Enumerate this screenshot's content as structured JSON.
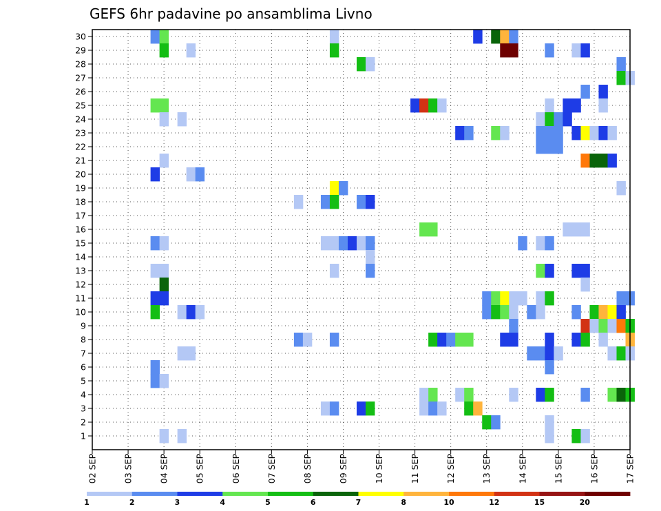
{
  "chart_data": {
    "type": "heatmap",
    "title": "GEFS 6hr padavine po ansamblima Livno",
    "xlabel": "",
    "ylabel": "",
    "x_tick_labels": [
      "02 SEP",
      "03 SEP",
      "04 SEP",
      "05 SEP",
      "06 SEP",
      "07 SEP",
      "08 SEP",
      "09 SEP",
      "10 SEP",
      "11 SEP",
      "12 SEP",
      "13 SEP",
      "14 SEP",
      "15 SEP",
      "16 SEP",
      "17 SEP"
    ],
    "y_tick_labels": [
      "1",
      "2",
      "3",
      "4",
      "5",
      "6",
      "7",
      "8",
      "9",
      "10",
      "11",
      "12",
      "13",
      "14",
      "15",
      "16",
      "17",
      "18",
      "19",
      "20",
      "21",
      "22",
      "23",
      "24",
      "25",
      "26",
      "27",
      "28",
      "29",
      "30"
    ],
    "x_unit": "6-hour step index from 02 SEP 00Z (0-60)",
    "ylim": [
      0,
      30
    ],
    "grid": true,
    "legend_placement": "bottom",
    "color_levels": [
      1,
      2,
      3,
      4,
      5,
      6,
      7,
      8,
      10,
      12,
      15,
      20
    ],
    "legend_labels": [
      "1",
      "2",
      "3",
      "4",
      "5",
      "6",
      "7",
      "8",
      "10",
      "12",
      "15",
      "20"
    ],
    "colors": [
      "#b4c8f5",
      "#5a8cf0",
      "#1e3ce6",
      "#64e650",
      "#14be14",
      "#0a640a",
      "#ffff00",
      "#ffb43c",
      "#ff780a",
      "#d23214",
      "#961414",
      "#6e0000"
    ],
    "cells": [
      [
        7,
        30,
        2
      ],
      [
        8,
        30,
        4
      ],
      [
        27,
        30,
        1
      ],
      [
        43,
        30,
        3
      ],
      [
        45,
        30,
        6
      ],
      [
        46,
        30,
        8
      ],
      [
        47,
        30,
        2
      ],
      [
        8,
        29,
        5
      ],
      [
        11,
        29,
        1
      ],
      [
        27,
        29,
        5
      ],
      [
        46,
        29,
        12
      ],
      [
        47,
        29,
        12
      ],
      [
        51,
        29,
        2
      ],
      [
        54,
        29,
        1
      ],
      [
        55,
        29,
        3
      ],
      [
        30,
        28,
        5
      ],
      [
        31,
        28,
        1
      ],
      [
        59,
        28,
        2
      ],
      [
        59,
        27,
        5
      ],
      [
        60,
        27,
        1
      ],
      [
        55,
        26,
        2
      ],
      [
        57,
        26,
        3
      ],
      [
        7,
        25,
        4
      ],
      [
        8,
        25,
        4
      ],
      [
        36,
        25,
        3
      ],
      [
        37,
        25,
        10
      ],
      [
        38,
        25,
        5
      ],
      [
        39,
        25,
        1
      ],
      [
        51,
        25,
        1
      ],
      [
        53,
        25,
        3
      ],
      [
        54,
        25,
        3
      ],
      [
        57,
        25,
        1
      ],
      [
        8,
        24,
        1
      ],
      [
        10,
        24,
        1
      ],
      [
        50,
        24,
        1
      ],
      [
        51,
        24,
        5
      ],
      [
        52,
        24,
        2
      ],
      [
        53,
        24,
        3
      ],
      [
        41,
        23,
        3
      ],
      [
        42,
        23,
        2
      ],
      [
        45,
        23,
        4
      ],
      [
        46,
        23,
        1
      ],
      [
        50,
        23,
        2
      ],
      [
        51,
        23,
        2
      ],
      [
        52,
        23,
        2
      ],
      [
        54,
        23,
        3
      ],
      [
        55,
        23,
        7
      ],
      [
        56,
        23,
        1
      ],
      [
        57,
        23,
        3
      ],
      [
        58,
        23,
        1
      ],
      [
        50,
        22,
        2
      ],
      [
        51,
        22,
        2
      ],
      [
        52,
        22,
        2
      ],
      [
        8,
        21,
        1
      ],
      [
        55,
        21,
        9
      ],
      [
        56,
        21,
        6
      ],
      [
        57,
        21,
        6
      ],
      [
        58,
        21,
        3
      ],
      [
        7,
        20,
        3
      ],
      [
        11,
        20,
        1
      ],
      [
        12,
        20,
        2
      ],
      [
        27,
        19,
        7
      ],
      [
        28,
        19,
        2
      ],
      [
        59,
        19,
        1
      ],
      [
        23,
        18,
        1
      ],
      [
        26,
        18,
        2
      ],
      [
        27,
        18,
        5
      ],
      [
        30,
        18,
        2
      ],
      [
        31,
        18,
        3
      ],
      [
        37,
        16,
        4
      ],
      [
        38,
        16,
        4
      ],
      [
        53,
        16,
        1
      ],
      [
        54,
        16,
        1
      ],
      [
        55,
        16,
        1
      ],
      [
        7,
        15,
        2
      ],
      [
        8,
        15,
        1
      ],
      [
        26,
        15,
        1
      ],
      [
        27,
        15,
        1
      ],
      [
        28,
        15,
        2
      ],
      [
        29,
        15,
        3
      ],
      [
        30,
        15,
        1
      ],
      [
        31,
        15,
        2
      ],
      [
        48,
        15,
        2
      ],
      [
        50,
        15,
        1
      ],
      [
        51,
        15,
        2
      ],
      [
        31,
        14,
        1
      ],
      [
        7,
        13,
        1
      ],
      [
        8,
        13,
        1
      ],
      [
        27,
        13,
        1
      ],
      [
        31,
        13,
        2
      ],
      [
        50,
        13,
        4
      ],
      [
        51,
        13,
        3
      ],
      [
        54,
        13,
        3
      ],
      [
        55,
        13,
        3
      ],
      [
        8,
        12,
        6
      ],
      [
        55,
        12,
        1
      ],
      [
        7,
        11,
        3
      ],
      [
        8,
        11,
        3
      ],
      [
        44,
        11,
        2
      ],
      [
        45,
        11,
        4
      ],
      [
        46,
        11,
        7
      ],
      [
        47,
        11,
        1
      ],
      [
        48,
        11,
        1
      ],
      [
        50,
        11,
        1
      ],
      [
        51,
        11,
        5
      ],
      [
        59,
        11,
        2
      ],
      [
        60,
        11,
        2
      ],
      [
        7,
        10,
        5
      ],
      [
        10,
        10,
        1
      ],
      [
        11,
        10,
        3
      ],
      [
        12,
        10,
        1
      ],
      [
        44,
        10,
        2
      ],
      [
        45,
        10,
        5
      ],
      [
        46,
        10,
        4
      ],
      [
        47,
        10,
        1
      ],
      [
        49,
        10,
        2
      ],
      [
        50,
        10,
        1
      ],
      [
        54,
        10,
        2
      ],
      [
        56,
        10,
        5
      ],
      [
        57,
        10,
        8
      ],
      [
        58,
        10,
        7
      ],
      [
        59,
        10,
        3
      ],
      [
        47,
        9,
        2
      ],
      [
        55,
        9,
        10
      ],
      [
        56,
        9,
        1
      ],
      [
        57,
        9,
        4
      ],
      [
        58,
        9,
        1
      ],
      [
        59,
        9,
        9
      ],
      [
        60,
        9,
        5
      ],
      [
        23,
        8,
        2
      ],
      [
        24,
        8,
        1
      ],
      [
        27,
        8,
        2
      ],
      [
        38,
        8,
        5
      ],
      [
        39,
        8,
        3
      ],
      [
        40,
        8,
        2
      ],
      [
        41,
        8,
        4
      ],
      [
        42,
        8,
        4
      ],
      [
        46,
        8,
        3
      ],
      [
        47,
        8,
        3
      ],
      [
        51,
        8,
        3
      ],
      [
        54,
        8,
        3
      ],
      [
        55,
        8,
        5
      ],
      [
        57,
        8,
        1
      ],
      [
        60,
        8,
        8
      ],
      [
        10,
        7,
        1
      ],
      [
        11,
        7,
        1
      ],
      [
        49,
        7,
        2
      ],
      [
        50,
        7,
        2
      ],
      [
        51,
        7,
        3
      ],
      [
        52,
        7,
        1
      ],
      [
        58,
        7,
        1
      ],
      [
        59,
        7,
        5
      ],
      [
        60,
        7,
        1
      ],
      [
        7,
        6,
        2
      ],
      [
        51,
        6,
        2
      ],
      [
        7,
        5,
        2
      ],
      [
        8,
        5,
        1
      ],
      [
        37,
        4,
        1
      ],
      [
        38,
        4,
        4
      ],
      [
        41,
        4,
        1
      ],
      [
        42,
        4,
        4
      ],
      [
        47,
        4,
        1
      ],
      [
        50,
        4,
        3
      ],
      [
        51,
        4,
        5
      ],
      [
        55,
        4,
        2
      ],
      [
        58,
        4,
        4
      ],
      [
        59,
        4,
        6
      ],
      [
        60,
        4,
        5
      ],
      [
        26,
        3,
        1
      ],
      [
        27,
        3,
        2
      ],
      [
        30,
        3,
        3
      ],
      [
        31,
        3,
        5
      ],
      [
        37,
        3,
        1
      ],
      [
        38,
        3,
        2
      ],
      [
        39,
        3,
        1
      ],
      [
        42,
        3,
        5
      ],
      [
        43,
        3,
        8
      ],
      [
        44,
        2,
        5
      ],
      [
        45,
        2,
        2
      ],
      [
        51,
        2,
        1
      ],
      [
        8,
        1,
        1
      ],
      [
        10,
        1,
        1
      ],
      [
        51,
        1,
        1
      ],
      [
        54,
        1,
        5
      ],
      [
        55,
        1,
        1
      ]
    ]
  }
}
